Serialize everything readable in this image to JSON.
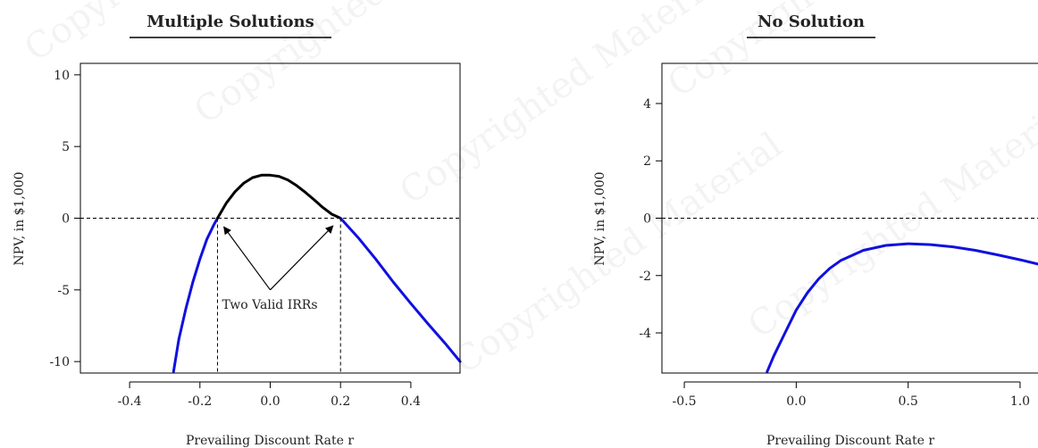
{
  "chart_data": [
    {
      "type": "line",
      "title": "Multiple Solutions",
      "xlabel": "Prevailing Discount Rate r",
      "ylabel": "NPV, in $1,000",
      "xlim": [
        -0.54,
        0.54
      ],
      "ylim": [
        -10.8,
        10.8
      ],
      "xticks": [
        "-0.4",
        "-0.2",
        "0.0",
        "0.2",
        "0.4"
      ],
      "yticks": [
        "10",
        "5",
        "0",
        "-5",
        "-10"
      ],
      "series": [
        {
          "color": "#1010e0",
          "x": [
            -0.275,
            -0.26,
            -0.24,
            -0.22,
            -0.2,
            -0.18,
            -0.16,
            -0.15
          ],
          "y": [
            -10.7,
            -8.45,
            -6.3,
            -4.45,
            -2.85,
            -1.45,
            -0.45,
            0.0
          ]
        },
        {
          "color": "#000000",
          "x": [
            -0.15,
            -0.125,
            -0.1,
            -0.075,
            -0.05,
            -0.025,
            0.0,
            0.025,
            0.05,
            0.075,
            0.1,
            0.125,
            0.15,
            0.175,
            0.2
          ],
          "y": [
            0.0,
            1.05,
            1.85,
            2.45,
            2.83,
            3.0,
            3.0,
            2.92,
            2.67,
            2.28,
            1.8,
            1.28,
            0.74,
            0.28,
            0.0
          ]
        },
        {
          "color": "#1010e0",
          "x": [
            0.2,
            0.25,
            0.3,
            0.35,
            0.4,
            0.45,
            0.5,
            0.54
          ],
          "y": [
            0.0,
            -1.35,
            -2.85,
            -4.45,
            -5.95,
            -7.4,
            -8.8,
            -10.0
          ]
        }
      ],
      "annotations": [
        {
          "text": "Two Valid IRRs",
          "x": 0.0,
          "y": -5.0,
          "arrows_to": [
            [
              -0.15,
              0.0
            ],
            [
              0.2,
              0.0
            ]
          ]
        }
      ],
      "reference_lines": {
        "hline_y": 0,
        "vlines_x": [
          -0.15,
          0.2
        ]
      },
      "grid": false
    },
    {
      "type": "line",
      "title": "No Solution",
      "xlabel": "Prevailing Discount Rate r",
      "ylabel": "NPV, in $1,000",
      "xlim": [
        -0.6,
        1.08
      ],
      "ylim": [
        -5.4,
        5.4
      ],
      "xticks": [
        "-0.5",
        "0.0",
        "0.5",
        "1.0"
      ],
      "yticks": [
        "4",
        "2",
        "0",
        "-2",
        "-4"
      ],
      "series": [
        {
          "color": "#1010e0",
          "x": [
            -0.13,
            -0.1,
            -0.05,
            0.0,
            0.05,
            0.1,
            0.15,
            0.2,
            0.3,
            0.4,
            0.5,
            0.6,
            0.7,
            0.8,
            0.9,
            1.0,
            1.08
          ],
          "y": [
            -5.35,
            -4.8,
            -4.0,
            -3.2,
            -2.6,
            -2.12,
            -1.75,
            -1.47,
            -1.12,
            -0.95,
            -0.89,
            -0.92,
            -1.0,
            -1.12,
            -1.28,
            -1.45,
            -1.6
          ]
        }
      ],
      "reference_lines": {
        "hline_y": 0
      },
      "grid": false
    }
  ]
}
